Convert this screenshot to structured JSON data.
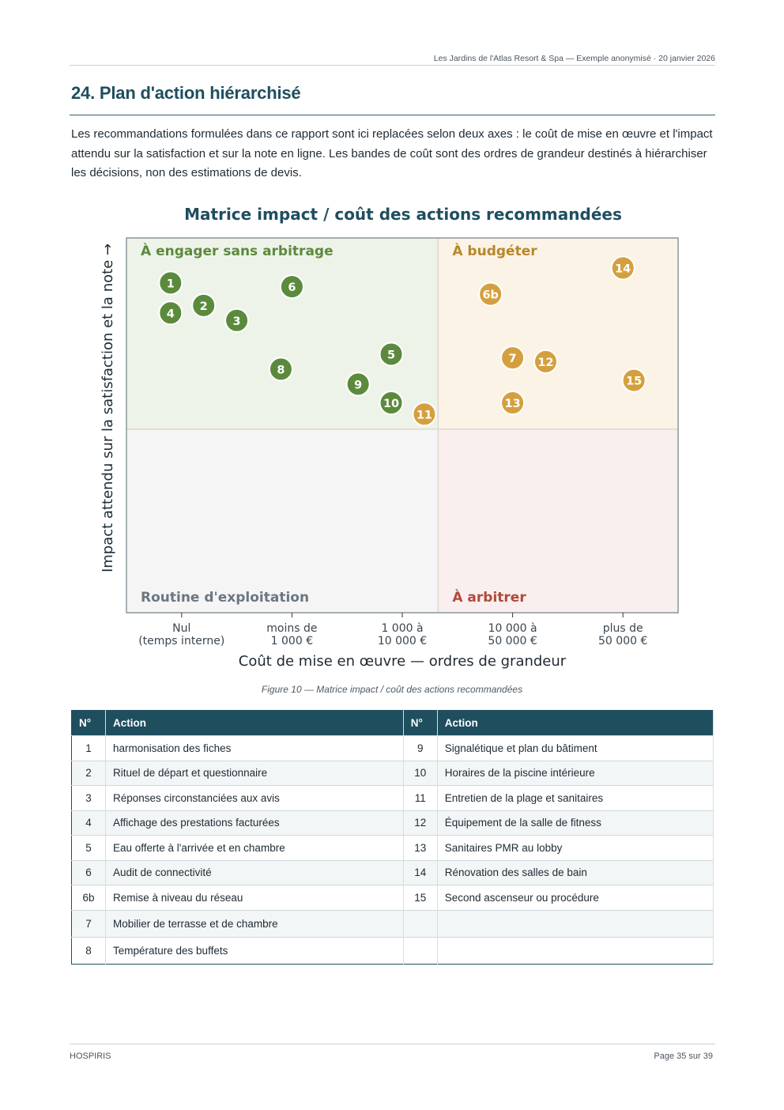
{
  "header": {
    "text": "Les Jardins de l'Atlas Resort & Spa — Exemple anonymisé · 20 janvier 2026"
  },
  "section": {
    "title": "24. Plan d'action hiérarchisé",
    "intro": "Les recommandations formulées dans ce rapport sont ici replacées selon deux axes : le coût de mise en œuvre et l'impact attendu sur la satisfaction et sur la note en ligne. Les bandes de coût sont des ordres de grandeur destinés à hiérarchiser les décisions, non des estimations de devis."
  },
  "chart_data": {
    "type": "scatter",
    "title": "Matrice impact / coût des actions recommandées",
    "xlabel": "Coût de mise en œuvre — ordres de grandeur",
    "ylabel": "Impact attendu sur la satisfaction et la note →",
    "x_ticks": [
      [
        "Nul",
        "(temps interne)"
      ],
      [
        "moins de",
        "1 000 €"
      ],
      [
        "1 000 à",
        "10 000 €"
      ],
      [
        "10 000 à",
        "50 000 €"
      ],
      [
        "plus de",
        "50 000 €"
      ]
    ],
    "xlim": [
      -0.5,
      4.5
    ],
    "ylim": [
      0,
      10
    ],
    "quadrants": [
      {
        "label": "À engager sans arbitrage",
        "color": "#5b8a3c",
        "bg": "#eef3ea"
      },
      {
        "label": "À budgéter",
        "color": "#b8862a",
        "bg": "#fbf4e6"
      },
      {
        "label": "Routine d'exploitation",
        "color": "#6b7680",
        "bg": "#f5f5f6"
      },
      {
        "label": "À arbitrer",
        "color": "#b04a3a",
        "bg": "#f8efee"
      }
    ],
    "series": [
      {
        "color": "#5b8a3c",
        "points": [
          {
            "id": "1",
            "x": -0.1,
            "y": 8.8
          },
          {
            "id": "2",
            "x": 0.2,
            "y": 8.2
          },
          {
            "id": "3",
            "x": 0.5,
            "y": 7.8
          },
          {
            "id": "4",
            "x": -0.1,
            "y": 8.0
          },
          {
            "id": "5",
            "x": 1.9,
            "y": 6.9
          },
          {
            "id": "6",
            "x": 1.0,
            "y": 8.7
          },
          {
            "id": "8",
            "x": 0.9,
            "y": 6.5
          },
          {
            "id": "9",
            "x": 1.6,
            "y": 6.1
          },
          {
            "id": "10",
            "x": 1.9,
            "y": 5.6
          }
        ]
      },
      {
        "color": "#d4a03f",
        "points": [
          {
            "id": "6b",
            "x": 2.8,
            "y": 8.5
          },
          {
            "id": "7",
            "x": 3.0,
            "y": 6.8
          },
          {
            "id": "11",
            "x": 2.2,
            "y": 5.3
          },
          {
            "id": "12",
            "x": 3.3,
            "y": 6.7
          },
          {
            "id": "13",
            "x": 3.0,
            "y": 5.6
          },
          {
            "id": "14",
            "x": 4.0,
            "y": 9.2
          },
          {
            "id": "15",
            "x": 4.1,
            "y": 6.2
          }
        ]
      }
    ],
    "grid": false
  },
  "caption": "Figure 10 — Matrice impact / coût des actions recommandées",
  "table": {
    "headers": [
      "N°",
      "Action",
      "N°",
      "Action"
    ],
    "rows": [
      [
        "1",
        "harmonisation des fiches",
        "9",
        "Signalétique et plan du bâtiment"
      ],
      [
        "2",
        "Rituel de départ et questionnaire",
        "10",
        "Horaires de la piscine intérieure"
      ],
      [
        "3",
        "Réponses circonstanciées aux avis",
        "11",
        "Entretien de la plage et sanitaires"
      ],
      [
        "4",
        "Affichage des prestations facturées",
        "12",
        "Équipement de la salle de fitness"
      ],
      [
        "5",
        "Eau offerte à l'arrivée et en chambre",
        "13",
        "Sanitaires PMR au lobby"
      ],
      [
        "6",
        "Audit de connectivité",
        "14",
        "Rénovation des salles de bain"
      ],
      [
        "6b",
        "Remise à niveau du réseau",
        "15",
        "Second ascenseur ou procédure"
      ],
      [
        "7",
        "Mobilier de terrasse et de chambre",
        "",
        ""
      ],
      [
        "8",
        "Température des buffets",
        "",
        ""
      ]
    ]
  },
  "footer": {
    "left": "HOSPIRIS",
    "right": "Page 35 sur 39"
  }
}
